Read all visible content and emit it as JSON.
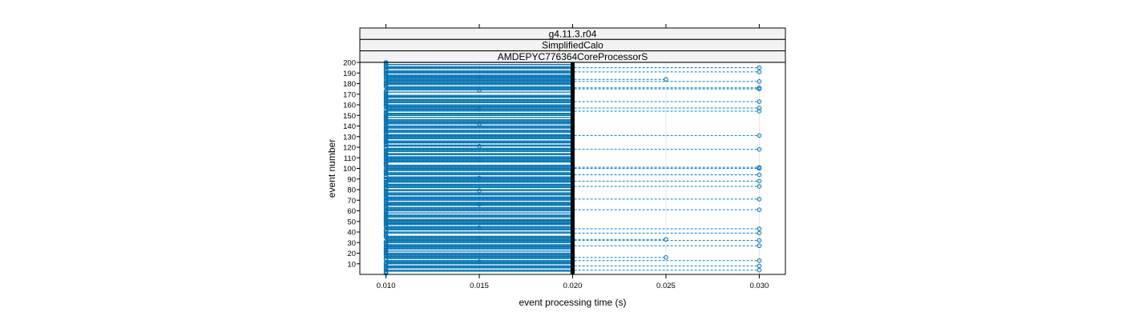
{
  "chart_data": {
    "type": "scatter",
    "style": "dotplot-with-dashed-guides",
    "strips": [
      "g4.11.3.r04",
      "SimplifiedCalo",
      "AMDEPYC776364CoreProcessorS"
    ],
    "xlabel": "event processing time (s)",
    "ylabel": "event number",
    "xlim": [
      0.0086,
      0.0314
    ],
    "ylim": [
      0,
      200
    ],
    "x_ticks": [
      0.01,
      0.015,
      0.02,
      0.025,
      0.03
    ],
    "x_tick_labels": [
      "0.010",
      "0.015",
      "0.020",
      "0.025",
      "0.030"
    ],
    "y_ticks": [
      10,
      20,
      30,
      40,
      50,
      60,
      70,
      80,
      90,
      100,
      110,
      120,
      130,
      140,
      150,
      160,
      170,
      180,
      190,
      200
    ],
    "y_tick_labels": [
      "10",
      "20",
      "30",
      "40",
      "50",
      "60",
      "70",
      "80",
      "90",
      "100",
      "110",
      "120",
      "130",
      "140",
      "150",
      "160",
      "170",
      "180",
      "190",
      "200"
    ],
    "reference_line_x": 0.02,
    "outliers": [
      {
        "event": 4,
        "time": 0.03
      },
      {
        "event": 8,
        "time": 0.03
      },
      {
        "event": 13,
        "time": 0.03
      },
      {
        "event": 16,
        "time": 0.025
      },
      {
        "event": 27,
        "time": 0.03
      },
      {
        "event": 32,
        "time": 0.03
      },
      {
        "event": 33,
        "time": 0.025
      },
      {
        "event": 39,
        "time": 0.03
      },
      {
        "event": 43,
        "time": 0.03
      },
      {
        "event": 61,
        "time": 0.03
      },
      {
        "event": 71,
        "time": 0.03
      },
      {
        "event": 83,
        "time": 0.03
      },
      {
        "event": 88,
        "time": 0.03
      },
      {
        "event": 94,
        "time": 0.03
      },
      {
        "event": 100,
        "time": 0.03
      },
      {
        "event": 101,
        "time": 0.03
      },
      {
        "event": 118,
        "time": 0.03
      },
      {
        "event": 131,
        "time": 0.03
      },
      {
        "event": 154,
        "time": 0.03
      },
      {
        "event": 157,
        "time": 0.03
      },
      {
        "event": 163,
        "time": 0.03
      },
      {
        "event": 175,
        "time": 0.03
      },
      {
        "event": 176,
        "time": 0.03
      },
      {
        "event": 182,
        "time": 0.03
      },
      {
        "event": 184,
        "time": 0.025
      },
      {
        "event": 191,
        "time": 0.03
      },
      {
        "event": 195,
        "time": 0.03
      }
    ],
    "colors": {
      "points": "#0072b2",
      "guides": "#0080c0",
      "strip_bg": "#f2f2f2",
      "grid": "#e6e6e6",
      "reference_line": "#000000"
    }
  }
}
